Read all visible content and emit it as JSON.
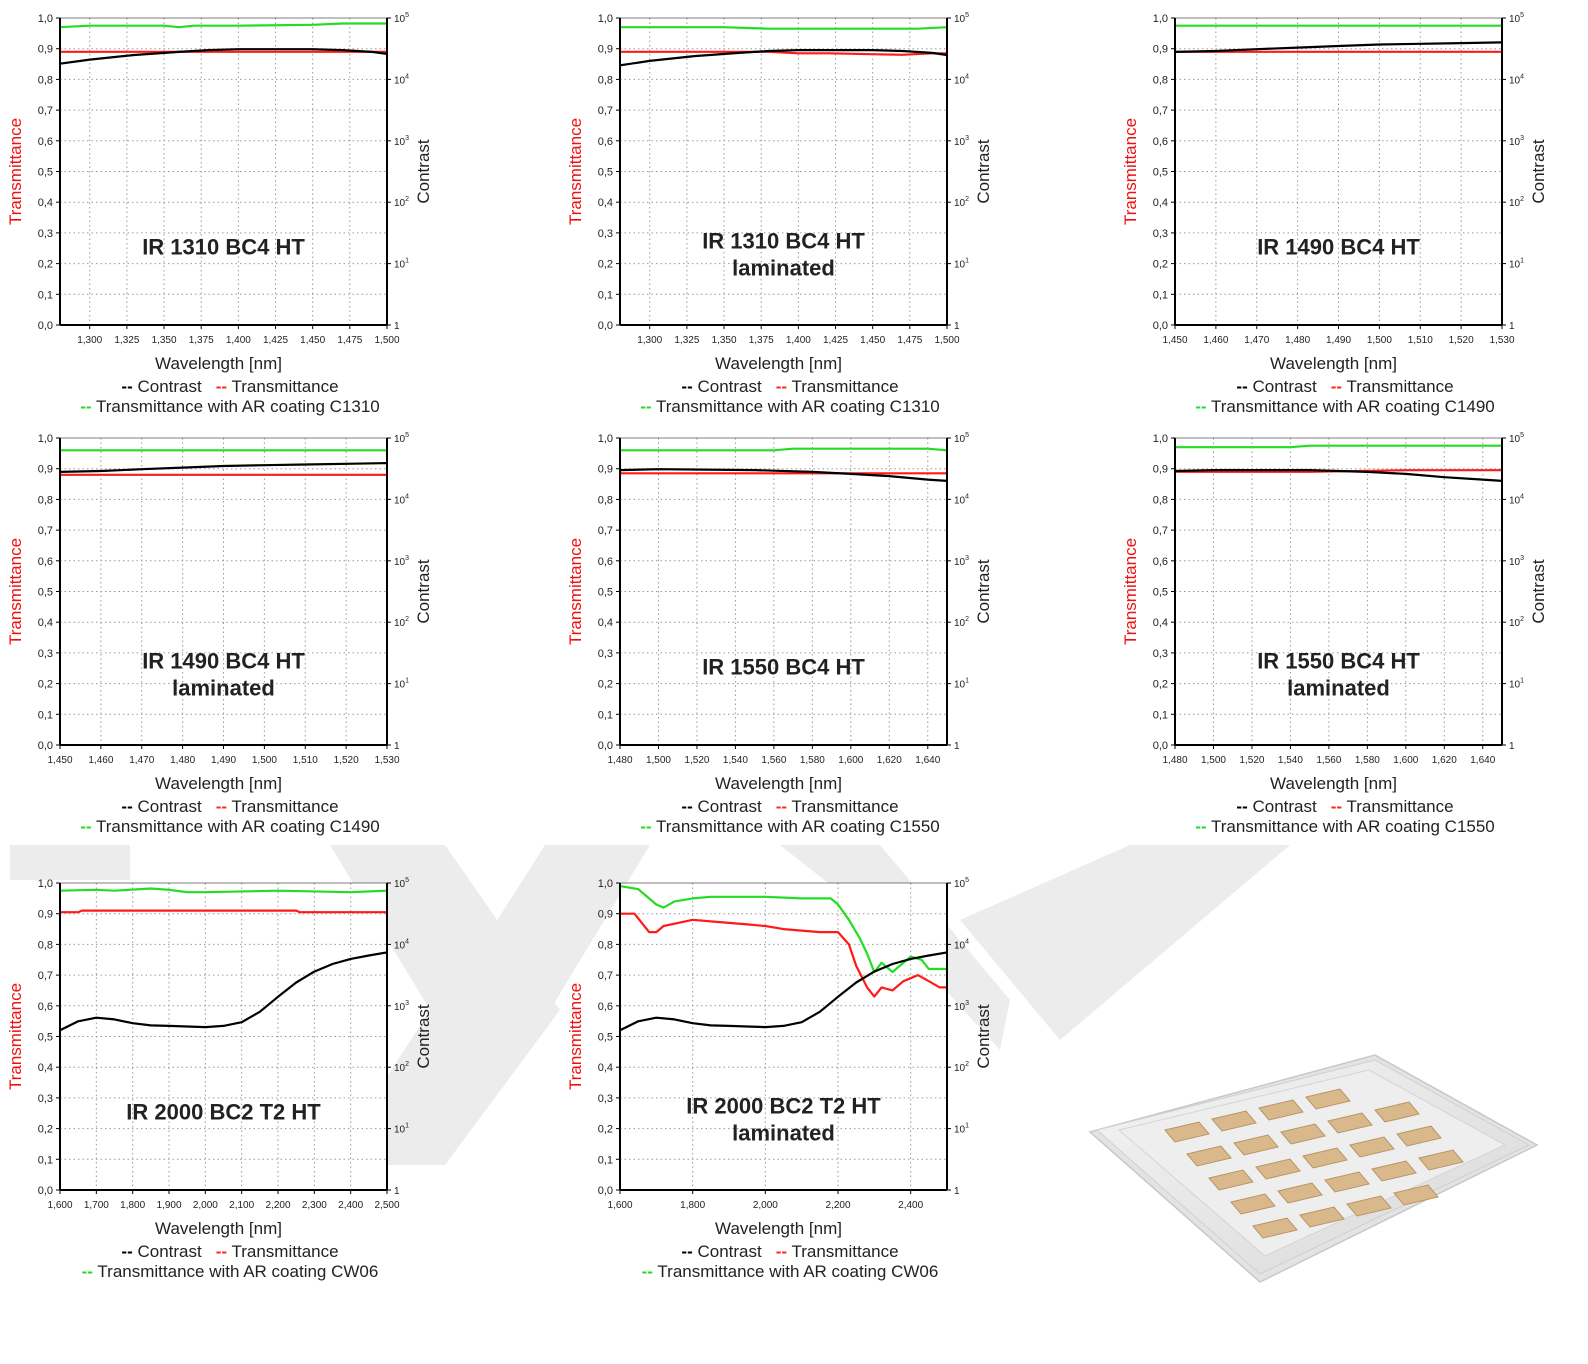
{
  "legend_labels": {
    "contrast": "Contrast",
    "transmittance": "Transmittance",
    "ar_prefix": "Transmittance with AR coating"
  },
  "colors": {
    "contrast": "#000000",
    "transmittance": "#ff1a1a",
    "ar": "#22dd22",
    "grid": "#9a9a9a"
  },
  "chart_data": [
    {
      "type": "line",
      "title": [
        "IR 1310 BC4 HT"
      ],
      "xlabel": "Wavelength [nm]",
      "ylabel": "Transmittance",
      "y2label": "Contrast",
      "xlim": [
        1.28,
        1.5
      ],
      "xticks": [
        1.3,
        1.325,
        1.35,
        1.375,
        1.4,
        1.425,
        1.45,
        1.475,
        1.5
      ],
      "xdecimals": 3,
      "ylim": [
        0,
        1
      ],
      "y2lim": [
        1,
        100000
      ],
      "y2scale": "log",
      "legend_ar": "Transmittance with AR coating C1310",
      "series": [
        {
          "name": "Contrast",
          "axis": "right",
          "x": [
            1.28,
            1.3,
            1.33,
            1.36,
            1.38,
            1.4,
            1.42,
            1.45,
            1.47,
            1.49,
            1.5
          ],
          "y": [
            18000,
            21000,
            25000,
            28000,
            30000,
            31000,
            31000,
            31000,
            30000,
            28000,
            26000
          ]
        },
        {
          "name": "Transmittance",
          "axis": "left",
          "x": [
            1.28,
            1.35,
            1.4,
            1.45,
            1.5
          ],
          "y": [
            0.89,
            0.89,
            0.89,
            0.89,
            0.89
          ]
        },
        {
          "name": "Transmittance with AR coating C1310",
          "axis": "left",
          "x": [
            1.28,
            1.3,
            1.35,
            1.36,
            1.37,
            1.4,
            1.45,
            1.47,
            1.5
          ],
          "y": [
            0.97,
            0.975,
            0.975,
            0.97,
            0.975,
            0.975,
            0.978,
            0.982,
            0.982
          ]
        }
      ]
    },
    {
      "type": "line",
      "title": [
        "IR 1310 BC4 HT",
        "laminated"
      ],
      "xlabel": "Wavelength [nm]",
      "ylabel": "Transmittance",
      "y2label": "Contrast",
      "xlim": [
        1.28,
        1.5
      ],
      "xticks": [
        1.3,
        1.325,
        1.35,
        1.375,
        1.4,
        1.425,
        1.45,
        1.475,
        1.5
      ],
      "xdecimals": 3,
      "ylim": [
        0,
        1
      ],
      "y2lim": [
        1,
        100000
      ],
      "y2scale": "log",
      "legend_ar": "Transmittance with AR coating C1310",
      "series": [
        {
          "name": "Contrast",
          "axis": "right",
          "x": [
            1.28,
            1.3,
            1.33,
            1.36,
            1.38,
            1.4,
            1.42,
            1.45,
            1.47,
            1.49,
            1.5
          ],
          "y": [
            17000,
            20000,
            24000,
            27000,
            29000,
            30000,
            30000,
            30000,
            29000,
            27000,
            25000
          ]
        },
        {
          "name": "Transmittance",
          "axis": "left",
          "x": [
            1.28,
            1.38,
            1.4,
            1.42,
            1.47,
            1.49,
            1.5
          ],
          "y": [
            0.89,
            0.89,
            0.885,
            0.885,
            0.88,
            0.885,
            0.885
          ]
        },
        {
          "name": "Transmittance with AR coating C1310",
          "axis": "left",
          "x": [
            1.28,
            1.35,
            1.38,
            1.4,
            1.45,
            1.48,
            1.5
          ],
          "y": [
            0.97,
            0.97,
            0.965,
            0.965,
            0.965,
            0.965,
            0.97
          ]
        }
      ]
    },
    {
      "type": "line",
      "title": [
        "IR 1490 BC4 HT"
      ],
      "xlabel": "Wavelength [nm]",
      "ylabel": "Transmittance",
      "y2label": "Contrast",
      "xlim": [
        1.45,
        1.53
      ],
      "xticks": [
        1.45,
        1.46,
        1.47,
        1.48,
        1.49,
        1.5,
        1.51,
        1.52,
        1.53
      ],
      "xdecimals": 3,
      "ylim": [
        0,
        1
      ],
      "y2lim": [
        1,
        100000
      ],
      "y2scale": "log",
      "legend_ar": "Transmittance  with AR coating C1490",
      "series": [
        {
          "name": "Contrast",
          "axis": "right",
          "x": [
            1.45,
            1.46,
            1.47,
            1.48,
            1.49,
            1.5,
            1.51,
            1.52,
            1.53
          ],
          "y": [
            28000,
            29000,
            31000,
            33000,
            35000,
            37000,
            38000,
            39000,
            40000
          ]
        },
        {
          "name": "Transmittance",
          "axis": "left",
          "x": [
            1.45,
            1.5,
            1.53
          ],
          "y": [
            0.89,
            0.89,
            0.89
          ]
        },
        {
          "name": "Transmittance with AR coating C1490",
          "axis": "left",
          "x": [
            1.45,
            1.5,
            1.53
          ],
          "y": [
            0.975,
            0.975,
            0.975
          ]
        }
      ]
    },
    {
      "type": "line",
      "title": [
        "IR 1490 BC4 HT",
        "laminated"
      ],
      "xlabel": "Wavelength [nm]",
      "ylabel": "Transmittance",
      "y2label": "Contrast",
      "xlim": [
        1.45,
        1.53
      ],
      "xticks": [
        1.45,
        1.46,
        1.47,
        1.48,
        1.49,
        1.5,
        1.51,
        1.52,
        1.53
      ],
      "xdecimals": 3,
      "ylim": [
        0,
        1
      ],
      "y2lim": [
        1,
        100000
      ],
      "y2scale": "log",
      "legend_ar": "Transmittance with AR coating C1490",
      "series": [
        {
          "name": "Contrast",
          "axis": "right",
          "x": [
            1.45,
            1.46,
            1.47,
            1.48,
            1.49,
            1.5,
            1.51,
            1.52,
            1.53
          ],
          "y": [
            28000,
            29000,
            31000,
            33000,
            35000,
            36000,
            37000,
            38000,
            39000
          ]
        },
        {
          "name": "Transmittance",
          "axis": "left",
          "x": [
            1.45,
            1.5,
            1.53
          ],
          "y": [
            0.88,
            0.88,
            0.88
          ]
        },
        {
          "name": "Transmittance with AR coating C1490",
          "axis": "left",
          "x": [
            1.45,
            1.5,
            1.53
          ],
          "y": [
            0.96,
            0.96,
            0.96
          ]
        }
      ]
    },
    {
      "type": "line",
      "title": [
        "IR 1550 BC4 HT"
      ],
      "xlabel": "Wavelength [nm]",
      "ylabel": "Transmittance",
      "y2label": "Contrast",
      "xlim": [
        1.48,
        1.65
      ],
      "xticks": [
        1.48,
        1.5,
        1.52,
        1.54,
        1.56,
        1.58,
        1.6,
        1.62,
        1.64
      ],
      "xdecimals": 3,
      "ylim": [
        0,
        1
      ],
      "y2lim": [
        1,
        100000
      ],
      "y2scale": "log",
      "legend_ar": "Transmittance with AR coating C1550",
      "series": [
        {
          "name": "Contrast",
          "axis": "right",
          "x": [
            1.48,
            1.5,
            1.55,
            1.58,
            1.6,
            1.62,
            1.64,
            1.65
          ],
          "y": [
            30000,
            31000,
            30000,
            28000,
            26000,
            24000,
            21000,
            20000
          ]
        },
        {
          "name": "Transmittance",
          "axis": "left",
          "x": [
            1.48,
            1.55,
            1.6,
            1.65
          ],
          "y": [
            0.885,
            0.885,
            0.885,
            0.885
          ]
        },
        {
          "name": "Transmittance with AR coating C1550",
          "axis": "left",
          "x": [
            1.48,
            1.56,
            1.57,
            1.6,
            1.64,
            1.65
          ],
          "y": [
            0.96,
            0.96,
            0.965,
            0.965,
            0.965,
            0.96
          ]
        }
      ]
    },
    {
      "type": "line",
      "title": [
        "IR 1550 BC4 HT",
        "laminated"
      ],
      "xlabel": "Wavelength [nm]",
      "ylabel": "Transmittance",
      "y2label": "Contrast",
      "xlim": [
        1.48,
        1.65
      ],
      "xticks": [
        1.48,
        1.5,
        1.52,
        1.54,
        1.56,
        1.58,
        1.6,
        1.62,
        1.64
      ],
      "xdecimals": 3,
      "ylim": [
        0,
        1
      ],
      "y2lim": [
        1,
        100000
      ],
      "y2scale": "log",
      "legend_ar": "Transmittance with AR coating C1550",
      "series": [
        {
          "name": "Contrast",
          "axis": "right",
          "x": [
            1.48,
            1.5,
            1.55,
            1.58,
            1.6,
            1.62,
            1.64,
            1.65
          ],
          "y": [
            29000,
            30000,
            30000,
            28000,
            26000,
            23000,
            21000,
            20000
          ]
        },
        {
          "name": "Transmittance",
          "axis": "left",
          "x": [
            1.48,
            1.55,
            1.6,
            1.65
          ],
          "y": [
            0.89,
            0.89,
            0.895,
            0.895
          ]
        },
        {
          "name": "Transmittance with AR coating C1550",
          "axis": "left",
          "x": [
            1.48,
            1.54,
            1.55,
            1.65
          ],
          "y": [
            0.97,
            0.97,
            0.975,
            0.975
          ]
        }
      ]
    },
    {
      "type": "line",
      "title": [
        "IR 2000 BC2 T2 HT"
      ],
      "xlabel": "Wavelength [nm]",
      "ylabel": "Transmittance",
      "y2label": "Contrast",
      "xlim": [
        1.6,
        2.5
      ],
      "xticks": [
        1.6,
        1.7,
        1.8,
        1.9,
        2.0,
        2.1,
        2.2,
        2.3,
        2.4,
        2.5
      ],
      "xdecimals": 3,
      "ylim": [
        0,
        1
      ],
      "y2lim": [
        1,
        100000
      ],
      "y2scale": "log",
      "legend_ar": "Transmittance with AR coating CW06",
      "series": [
        {
          "name": "Contrast",
          "axis": "right",
          "x": [
            1.6,
            1.65,
            1.7,
            1.75,
            1.8,
            1.85,
            1.9,
            1.95,
            2.0,
            2.05,
            2.1,
            2.15,
            2.2,
            2.25,
            2.3,
            2.35,
            2.4,
            2.45,
            2.5
          ],
          "y": [
            400,
            560,
            640,
            600,
            520,
            480,
            470,
            460,
            450,
            470,
            540,
            800,
            1400,
            2400,
            3600,
            4800,
            5800,
            6600,
            7400
          ]
        },
        {
          "name": "Transmittance",
          "axis": "left",
          "x": [
            1.6,
            1.65,
            1.66,
            2.25,
            2.26,
            2.5
          ],
          "y": [
            0.905,
            0.905,
            0.91,
            0.91,
            0.905,
            0.905
          ]
        },
        {
          "name": "Transmittance with AR coating CW06",
          "axis": "left",
          "x": [
            1.6,
            1.7,
            1.75,
            1.85,
            1.9,
            1.95,
            2.0,
            2.2,
            2.4,
            2.5
          ],
          "y": [
            0.975,
            0.978,
            0.975,
            0.982,
            0.978,
            0.97,
            0.97,
            0.975,
            0.97,
            0.975
          ]
        }
      ]
    },
    {
      "type": "line",
      "title": [
        "IR 2000 BC2 T2 HT",
        "laminated"
      ],
      "xlabel": "Wavelength [nm]",
      "ylabel": "Transmittance",
      "y2label": "Contrast",
      "xlim": [
        1.6,
        2.5
      ],
      "xticks": [
        1.6,
        1.8,
        2.0,
        2.2,
        2.4
      ],
      "xdecimals": 3,
      "ylim": [
        0,
        1
      ],
      "y2lim": [
        1,
        100000
      ],
      "y2scale": "log",
      "legend_ar": "Transmittance with AR coating CW06",
      "series": [
        {
          "name": "Contrast",
          "axis": "right",
          "x": [
            1.6,
            1.65,
            1.7,
            1.75,
            1.8,
            1.85,
            1.9,
            1.95,
            2.0,
            2.05,
            2.1,
            2.15,
            2.2,
            2.25,
            2.3,
            2.35,
            2.4,
            2.45,
            2.5
          ],
          "y": [
            400,
            560,
            640,
            600,
            520,
            480,
            470,
            460,
            450,
            470,
            540,
            800,
            1400,
            2400,
            3600,
            4800,
            5800,
            6600,
            7400
          ]
        },
        {
          "name": "Transmittance",
          "axis": "left",
          "x": [
            1.6,
            1.64,
            1.68,
            1.7,
            1.72,
            1.76,
            1.8,
            1.85,
            1.9,
            1.95,
            2.0,
            2.05,
            2.1,
            2.15,
            2.2,
            2.23,
            2.25,
            2.28,
            2.3,
            2.32,
            2.35,
            2.38,
            2.4,
            2.42,
            2.45,
            2.48,
            2.5
          ],
          "y": [
            0.9,
            0.9,
            0.84,
            0.84,
            0.86,
            0.87,
            0.88,
            0.875,
            0.87,
            0.865,
            0.86,
            0.85,
            0.845,
            0.84,
            0.84,
            0.8,
            0.73,
            0.66,
            0.63,
            0.66,
            0.65,
            0.68,
            0.69,
            0.7,
            0.68,
            0.66,
            0.66
          ]
        },
        {
          "name": "Transmittance with AR coating CW06",
          "axis": "left",
          "x": [
            1.6,
            1.65,
            1.7,
            1.72,
            1.75,
            1.8,
            1.85,
            1.9,
            2.0,
            2.1,
            2.15,
            2.18,
            2.2,
            2.23,
            2.26,
            2.28,
            2.3,
            2.32,
            2.35,
            2.38,
            2.4,
            2.43,
            2.45,
            2.48,
            2.5
          ],
          "y": [
            0.99,
            0.98,
            0.93,
            0.92,
            0.94,
            0.95,
            0.955,
            0.955,
            0.955,
            0.95,
            0.95,
            0.95,
            0.93,
            0.88,
            0.82,
            0.77,
            0.71,
            0.74,
            0.71,
            0.74,
            0.76,
            0.75,
            0.72,
            0.72,
            0.72
          ]
        }
      ]
    }
  ]
}
